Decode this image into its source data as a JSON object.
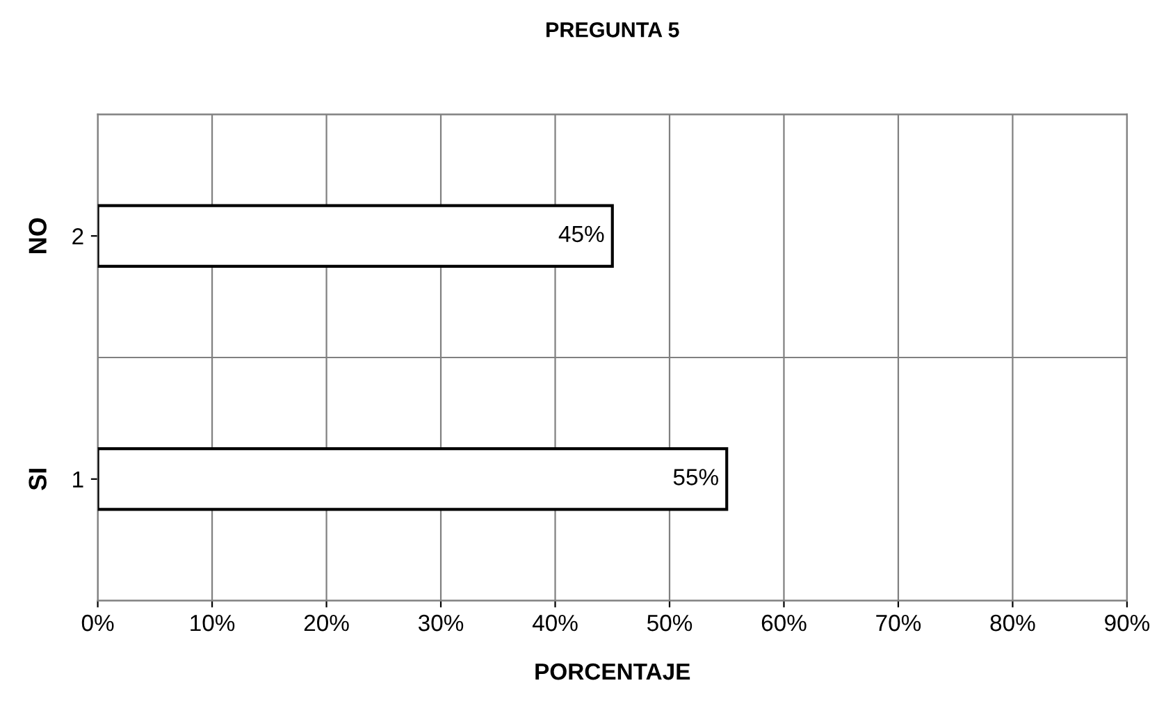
{
  "chart_data": {
    "type": "bar",
    "orientation": "horizontal",
    "title": "PREGUNTA 5",
    "xlabel": "PORCENTAJE",
    "categories": [
      "2",
      "1"
    ],
    "values": [
      45,
      55
    ],
    "colors": [
      "#ffffff",
      "#ffffff"
    ],
    "value_labels": [
      "45%",
      "55%"
    ],
    "annotations": [
      "NO",
      "SI"
    ],
    "xlim": [
      0,
      90
    ],
    "xticks": [
      {
        "value": 0,
        "label": "0%"
      },
      {
        "value": 10,
        "label": "10%"
      },
      {
        "value": 20,
        "label": "20%"
      },
      {
        "value": 30,
        "label": "30%"
      },
      {
        "value": 40,
        "label": "40%"
      },
      {
        "value": 50,
        "label": "50%"
      },
      {
        "value": 60,
        "label": "60%"
      },
      {
        "value": 70,
        "label": "70%"
      },
      {
        "value": 80,
        "label": "80%"
      },
      {
        "value": 90,
        "label": "90%"
      }
    ],
    "grid": true,
    "legend": false
  }
}
